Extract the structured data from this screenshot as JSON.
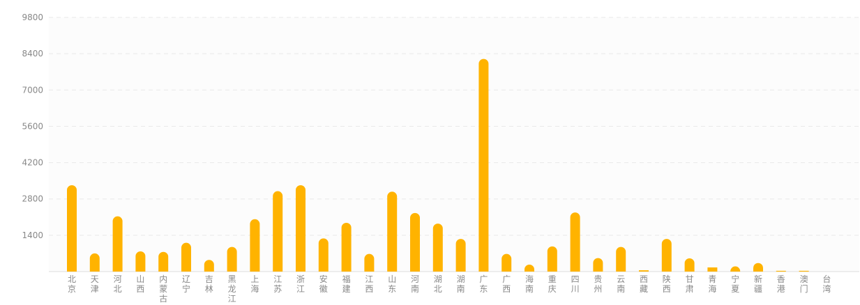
{
  "chart_data": {
    "type": "bar",
    "title": "",
    "xlabel": "",
    "ylabel": "",
    "categories": [
      "北京",
      "天津",
      "河北",
      "山西",
      "内蒙古",
      "辽宁",
      "吉林",
      "黑龙江",
      "上海",
      "江苏",
      "浙江",
      "安徽",
      "福建",
      "江西",
      "山东",
      "河南",
      "湖北",
      "湖南",
      "广东",
      "广西",
      "海南",
      "重庆",
      "四川",
      "贵州",
      "云南",
      "西藏",
      "陕西",
      "甘肃",
      "青海",
      "宁夏",
      "新疆",
      "香港",
      "澳门",
      "台湾"
    ],
    "values": [
      3330,
      700,
      2130,
      780,
      760,
      1110,
      450,
      950,
      2020,
      3100,
      3330,
      1280,
      1880,
      680,
      3080,
      2260,
      1850,
      1260,
      8200,
      680,
      270,
      970,
      2280,
      520,
      950,
      50,
      1260,
      510,
      160,
      200,
      330,
      30,
      30,
      0
    ],
    "yticks": [
      1400,
      2800,
      4200,
      5600,
      7000,
      8400,
      9800
    ],
    "ylim": [
      0,
      9800
    ],
    "grid": true,
    "bar_color": "#FFB300",
    "grid_color": "#e8e8e8",
    "axis_color": "#dddddd",
    "plot_bg": "#fcfcfc"
  }
}
